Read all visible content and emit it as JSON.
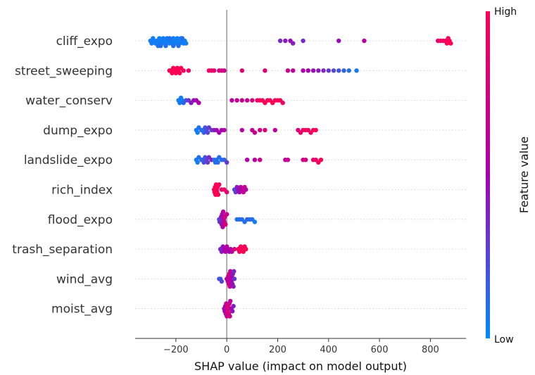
{
  "chart_data": {
    "type": "scatter",
    "title": "",
    "xlabel": "SHAP value (impact on model output)",
    "ylabel": "",
    "xlim": [
      -360,
      940
    ],
    "xticks": [
      -200,
      0,
      200,
      400,
      600,
      800
    ],
    "xtick_labels": [
      "−200",
      "0",
      "200",
      "400",
      "600",
      "800"
    ],
    "grid": false,
    "zero_line": true,
    "colorbar": {
      "title": "Feature value",
      "high_label": "High",
      "low_label": "Low",
      "low_color": "#008bfb",
      "mid_color": "#a800b0",
      "high_color": "#ff0052"
    },
    "features": [
      {
        "name": "cliff_expo",
        "points": [
          [
            -300,
            0.05
          ],
          [
            -295,
            0.05
          ],
          [
            -290,
            0.05
          ],
          [
            -285,
            0.05
          ],
          [
            -280,
            0.05
          ],
          [
            -275,
            0.05
          ],
          [
            -270,
            0.05
          ],
          [
            -265,
            0.05
          ],
          [
            -260,
            0.05
          ],
          [
            -255,
            0.05
          ],
          [
            -250,
            0.05
          ],
          [
            -245,
            0.05
          ],
          [
            -240,
            0.05
          ],
          [
            -235,
            0.05
          ],
          [
            -230,
            0.05
          ],
          [
            -225,
            0.05
          ],
          [
            -220,
            0.05
          ],
          [
            -215,
            0.05
          ],
          [
            -210,
            0.05
          ],
          [
            -205,
            0.05
          ],
          [
            -200,
            0.05
          ],
          [
            -195,
            0.05
          ],
          [
            -190,
            0.05
          ],
          [
            -185,
            0.05
          ],
          [
            -180,
            0.05
          ],
          [
            -175,
            0.05
          ],
          [
            -170,
            0.05
          ],
          [
            -165,
            0.05
          ],
          [
            -160,
            0.05
          ],
          [
            -270,
            0.1
          ],
          [
            -260,
            0.1
          ],
          [
            -240,
            0.1
          ],
          [
            -225,
            0.1
          ],
          [
            -210,
            0.1
          ],
          [
            -190,
            0.1
          ],
          [
            -175,
            0.1
          ],
          [
            210,
            0.35
          ],
          [
            230,
            0.4
          ],
          [
            250,
            0.45
          ],
          [
            260,
            0.4
          ],
          [
            300,
            0.35
          ],
          [
            440,
            0.45
          ],
          [
            540,
            0.6
          ],
          [
            830,
            0.85
          ],
          [
            840,
            0.9
          ],
          [
            850,
            0.95
          ],
          [
            860,
            0.9
          ],
          [
            865,
            1
          ],
          [
            870,
            0.95
          ],
          [
            875,
            1
          ],
          [
            880,
            1
          ]
        ]
      },
      {
        "name": "street_sweeping",
        "points": [
          [
            -225,
            1
          ],
          [
            -220,
            1
          ],
          [
            -215,
            1
          ],
          [
            -210,
            1
          ],
          [
            -205,
            1
          ],
          [
            -200,
            1
          ],
          [
            -195,
            1
          ],
          [
            -190,
            1
          ],
          [
            -185,
            1
          ],
          [
            -180,
            1
          ],
          [
            -170,
            0.95
          ],
          [
            -150,
            0.9
          ],
          [
            -70,
            0.9
          ],
          [
            -60,
            0.9
          ],
          [
            -50,
            0.85
          ],
          [
            -30,
            0.8
          ],
          [
            -20,
            0.75
          ],
          [
            -10,
            0.7
          ],
          [
            60,
            0.85
          ],
          [
            150,
            0.8
          ],
          [
            240,
            0.7
          ],
          [
            260,
            0.65
          ],
          [
            300,
            0.55
          ],
          [
            320,
            0.5
          ],
          [
            340,
            0.45
          ],
          [
            360,
            0.4
          ],
          [
            380,
            0.35
          ],
          [
            400,
            0.3
          ],
          [
            420,
            0.25
          ],
          [
            440,
            0.2
          ],
          [
            460,
            0.15
          ],
          [
            480,
            0.1
          ],
          [
            510,
            0.05
          ]
        ]
      },
      {
        "name": "water_conserv",
        "points": [
          [
            -190,
            0.05
          ],
          [
            -185,
            0.05
          ],
          [
            -180,
            0.05
          ],
          [
            -175,
            0.05
          ],
          [
            -170,
            0.15
          ],
          [
            -160,
            0.2
          ],
          [
            -150,
            0.3
          ],
          [
            -140,
            0.4
          ],
          [
            -130,
            0.45
          ],
          [
            -120,
            0.5
          ],
          [
            -110,
            0.55
          ],
          [
            20,
            0.6
          ],
          [
            40,
            0.65
          ],
          [
            60,
            0.7
          ],
          [
            80,
            0.7
          ],
          [
            100,
            0.8
          ],
          [
            120,
            0.9
          ],
          [
            130,
            0.95
          ],
          [
            140,
            1
          ],
          [
            150,
            0.95
          ],
          [
            160,
            1
          ],
          [
            170,
            0.95
          ],
          [
            180,
            1
          ],
          [
            190,
            0.95
          ],
          [
            200,
            1
          ],
          [
            210,
            0.95
          ],
          [
            220,
            0.9
          ]
        ]
      },
      {
        "name": "dump_expo",
        "points": [
          [
            -120,
            0.05
          ],
          [
            -115,
            0.05
          ],
          [
            -110,
            0.1
          ],
          [
            -100,
            0.1
          ],
          [
            -95,
            0.1
          ],
          [
            -90,
            0.15
          ],
          [
            -85,
            0.2
          ],
          [
            -80,
            0.2
          ],
          [
            -75,
            0.25
          ],
          [
            -70,
            0.3
          ],
          [
            -60,
            0.3
          ],
          [
            -50,
            0.4
          ],
          [
            -40,
            0.45
          ],
          [
            -30,
            0.5
          ],
          [
            -20,
            0.5
          ],
          [
            -10,
            0.55
          ],
          [
            60,
            0.6
          ],
          [
            100,
            0.65
          ],
          [
            110,
            0.7
          ],
          [
            130,
            0.75
          ],
          [
            150,
            0.8
          ],
          [
            190,
            0.6
          ],
          [
            280,
            0.8
          ],
          [
            290,
            0.85
          ],
          [
            300,
            0.9
          ],
          [
            310,
            0.9
          ],
          [
            320,
            0.95
          ],
          [
            330,
            0.9
          ],
          [
            340,
            0.95
          ],
          [
            350,
            1
          ]
        ]
      },
      {
        "name": "landslide_expo",
        "points": [
          [
            -120,
            0.05
          ],
          [
            -115,
            0.05
          ],
          [
            -110,
            0.1
          ],
          [
            -100,
            0.1
          ],
          [
            -95,
            0.15
          ],
          [
            -90,
            0.2
          ],
          [
            -85,
            0.2
          ],
          [
            -80,
            0.25
          ],
          [
            -75,
            0.3
          ],
          [
            -70,
            0.35
          ],
          [
            -60,
            0.4
          ],
          [
            -50,
            0.1
          ],
          [
            -45,
            0.1
          ],
          [
            -40,
            0.1
          ],
          [
            -35,
            0.1
          ],
          [
            -30,
            0.1
          ],
          [
            -20,
            0.1
          ],
          [
            -10,
            0.15
          ],
          [
            0,
            0.3
          ],
          [
            80,
            0.55
          ],
          [
            110,
            0.6
          ],
          [
            130,
            0.7
          ],
          [
            230,
            0.6
          ],
          [
            240,
            0.65
          ],
          [
            300,
            0.7
          ],
          [
            310,
            0.75
          ],
          [
            340,
            0.85
          ],
          [
            350,
            0.9
          ],
          [
            360,
            0.95
          ],
          [
            370,
            1
          ]
        ]
      },
      {
        "name": "rich_index",
        "points": [
          [
            -50,
            1
          ],
          [
            -48,
            1
          ],
          [
            -46,
            1
          ],
          [
            -44,
            1
          ],
          [
            -42,
            1
          ],
          [
            -40,
            1
          ],
          [
            -38,
            1
          ],
          [
            -36,
            1
          ],
          [
            -34,
            1
          ],
          [
            -30,
            0.95
          ],
          [
            -20,
            0.9
          ],
          [
            -10,
            0.9
          ],
          [
            0,
            0.85
          ],
          [
            30,
            0.25
          ],
          [
            35,
            0.3
          ],
          [
            40,
            0.4
          ],
          [
            45,
            0.45
          ],
          [
            50,
            0.5
          ],
          [
            55,
            0.55
          ],
          [
            60,
            0.6
          ],
          [
            65,
            0.65
          ],
          [
            70,
            0.7
          ],
          [
            75,
            0.6
          ]
        ]
      },
      {
        "name": "flood_expo",
        "points": [
          [
            -30,
            0.2
          ],
          [
            -28,
            0.25
          ],
          [
            -26,
            0.3
          ],
          [
            -24,
            0.35
          ],
          [
            -22,
            0.4
          ],
          [
            -20,
            0.45
          ],
          [
            -18,
            0.5
          ],
          [
            -16,
            0.55
          ],
          [
            -14,
            0.6
          ],
          [
            -12,
            0.65
          ],
          [
            -10,
            0.7
          ],
          [
            -8,
            0.75
          ],
          [
            -5,
            0.8
          ],
          [
            0,
            0.7
          ],
          [
            40,
            0.1
          ],
          [
            50,
            0.1
          ],
          [
            60,
            0.1
          ],
          [
            70,
            0.1
          ],
          [
            80,
            0.15
          ],
          [
            90,
            0.1
          ],
          [
            100,
            0.1
          ],
          [
            110,
            0.05
          ]
        ]
      },
      {
        "name": "trash_separation",
        "points": [
          [
            -25,
            0.35
          ],
          [
            -20,
            0.4
          ],
          [
            -15,
            0.45
          ],
          [
            -10,
            0.5
          ],
          [
            -5,
            0.55
          ],
          [
            0,
            0.6
          ],
          [
            5,
            0.55
          ],
          [
            10,
            0.5
          ],
          [
            15,
            0.55
          ],
          [
            20,
            0.6
          ],
          [
            30,
            0.8
          ],
          [
            45,
            0.9
          ],
          [
            50,
            0.95
          ],
          [
            55,
            1
          ],
          [
            60,
            0.95
          ],
          [
            65,
            1
          ],
          [
            70,
            0.95
          ],
          [
            75,
            1
          ]
        ]
      },
      {
        "name": "wind_avg",
        "points": [
          [
            -30,
            0.2
          ],
          [
            -25,
            0.2
          ],
          [
            -20,
            0.25
          ],
          [
            0,
            0.5
          ],
          [
            2,
            0.55
          ],
          [
            4,
            0.6
          ],
          [
            6,
            0.65
          ],
          [
            8,
            0.7
          ],
          [
            10,
            0.75
          ],
          [
            12,
            0.7
          ],
          [
            14,
            0.65
          ],
          [
            16,
            0.6
          ],
          [
            18,
            0.55
          ],
          [
            20,
            0.5
          ],
          [
            22,
            0.45
          ],
          [
            24,
            0.4
          ],
          [
            26,
            0.4
          ],
          [
            28,
            0.35
          ],
          [
            30,
            0.3
          ]
        ]
      },
      {
        "name": "moist_avg",
        "points": [
          [
            -10,
            0.45
          ],
          [
            -8,
            0.5
          ],
          [
            -6,
            0.55
          ],
          [
            -4,
            0.6
          ],
          [
            -2,
            0.65
          ],
          [
            0,
            0.7
          ],
          [
            2,
            0.75
          ],
          [
            4,
            0.8
          ],
          [
            6,
            0.85
          ],
          [
            8,
            0.8
          ],
          [
            10,
            0.75
          ],
          [
            12,
            0.7
          ],
          [
            14,
            0.6
          ],
          [
            18,
            0.5
          ],
          [
            22,
            0.45
          ],
          [
            26,
            0.4
          ]
        ]
      }
    ]
  }
}
